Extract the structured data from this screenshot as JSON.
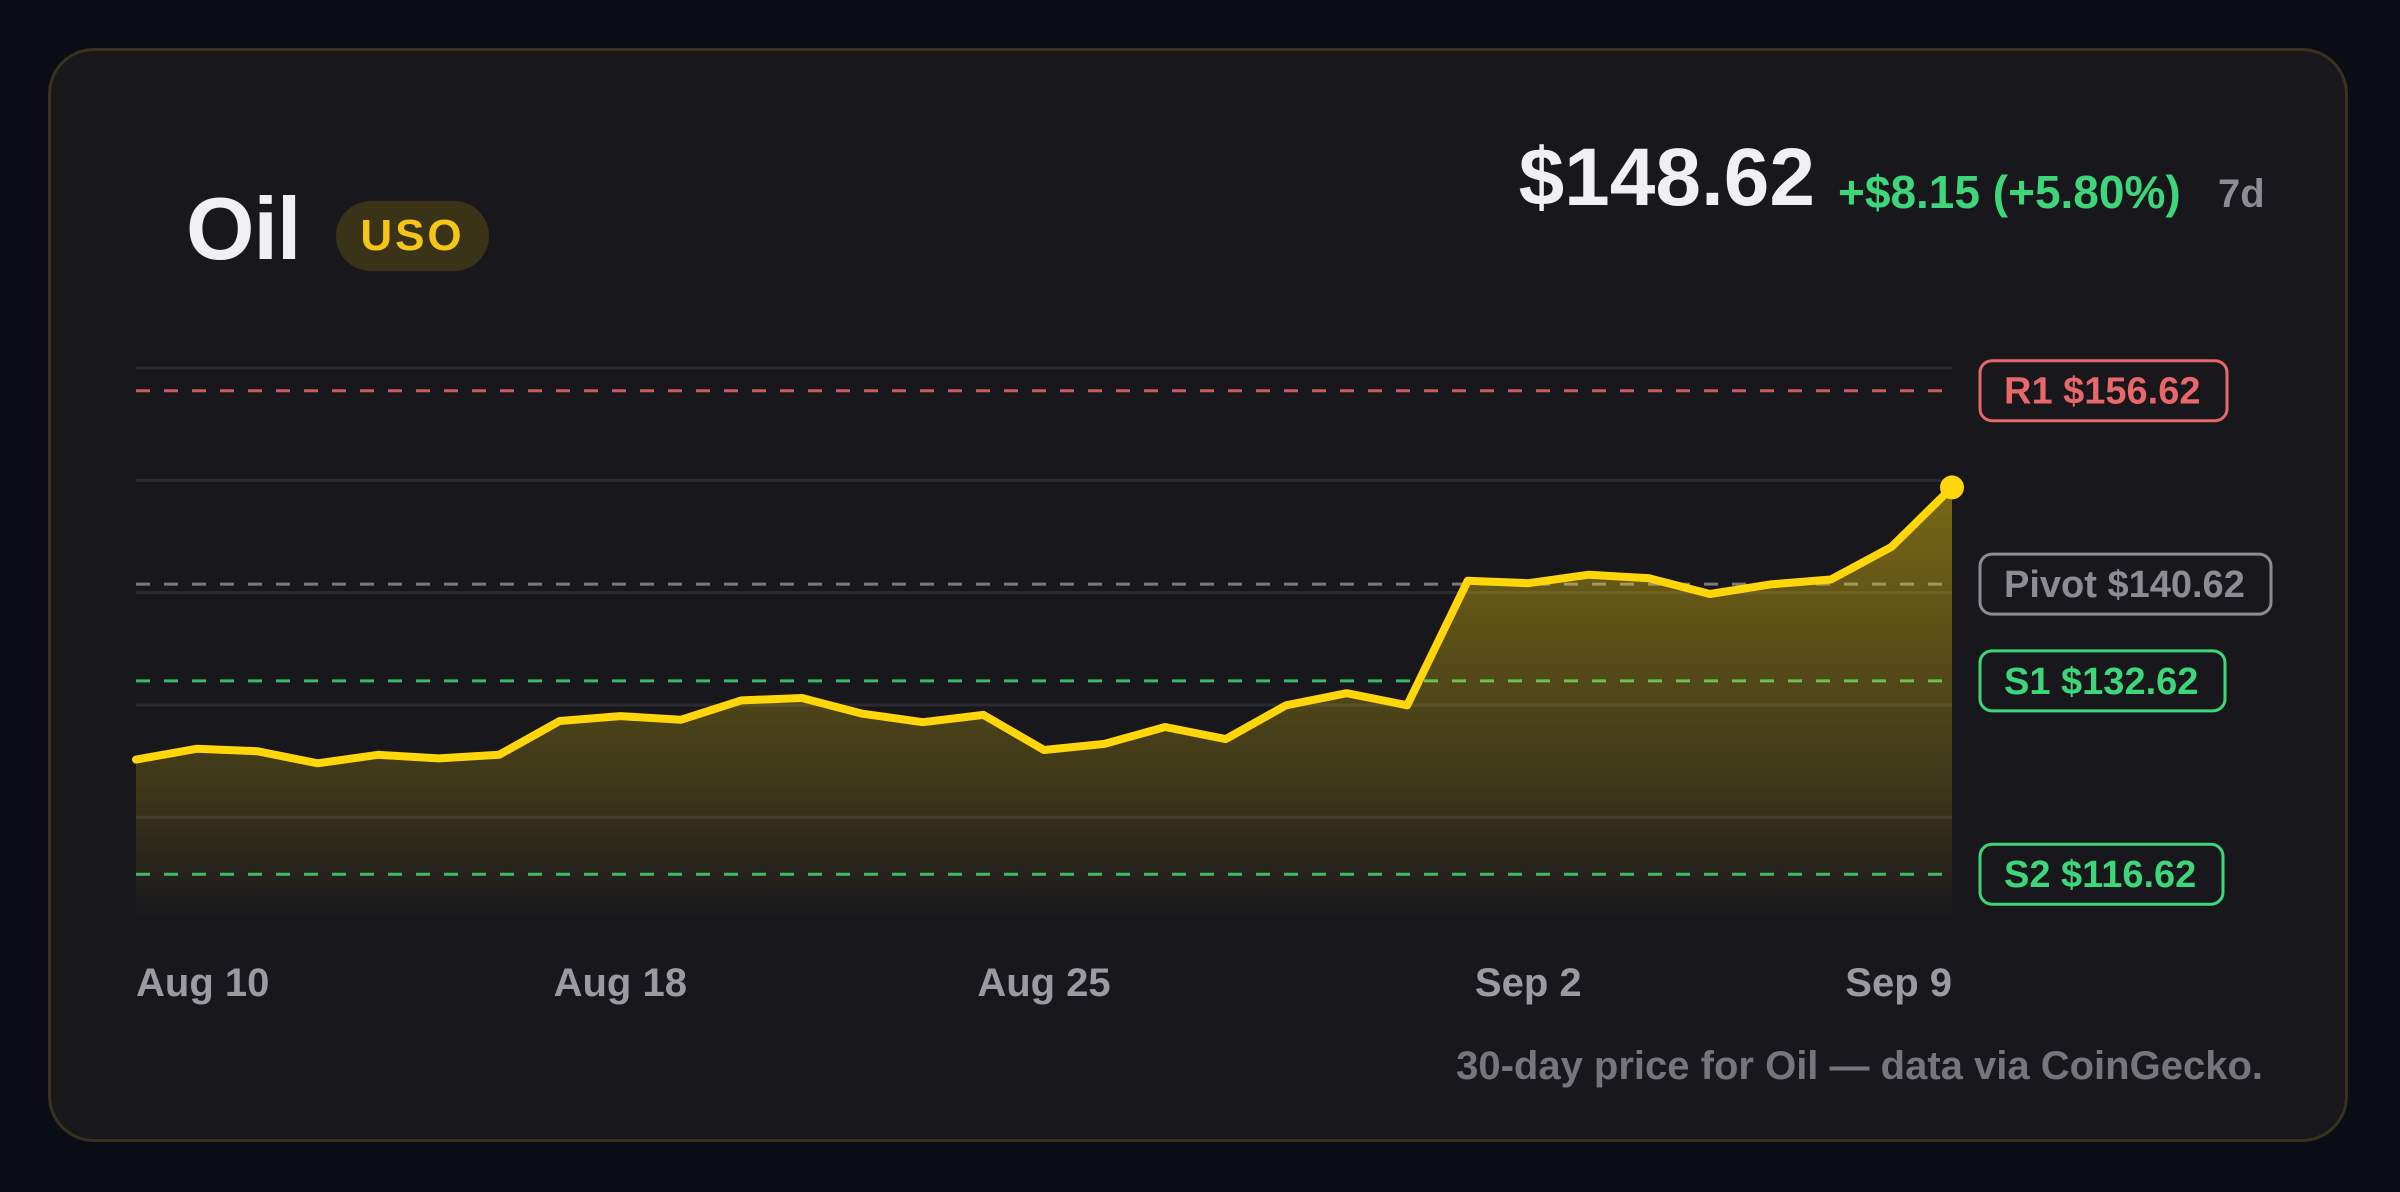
{
  "header": {
    "asset_name": "Oil",
    "ticker": "USO",
    "price": "$148.62",
    "change": "+$8.15 (+5.80%)",
    "period": "7d"
  },
  "footer": {
    "note": "30-day price for Oil — data via CoinGecko."
  },
  "colors": {
    "accent": "#ffd60a",
    "resistance": "#e8676b",
    "pivot": "#8c8c93",
    "support": "#3ed67a"
  },
  "chart_data": {
    "type": "area",
    "x": [
      "Aug 10",
      "Aug 11",
      "Aug 12",
      "Aug 13",
      "Aug 14",
      "Aug 15",
      "Aug 16",
      "Aug 17",
      "Aug 18",
      "Aug 19",
      "Aug 20",
      "Aug 21",
      "Aug 22",
      "Aug 23",
      "Aug 24",
      "Aug 25",
      "Aug 26",
      "Aug 27",
      "Aug 28",
      "Aug 29",
      "Aug 30",
      "Aug 31",
      "Sep 1",
      "Sep 2",
      "Sep 3",
      "Sep 4",
      "Sep 5",
      "Sep 6",
      "Sep 7",
      "Sep 8",
      "Sep 9"
    ],
    "values": [
      126.1,
      127.0,
      126.8,
      125.8,
      126.5,
      126.2,
      126.5,
      129.3,
      129.7,
      129.4,
      131.0,
      131.2,
      129.9,
      129.2,
      129.8,
      126.9,
      127.4,
      128.8,
      127.8,
      130.6,
      131.6,
      130.6,
      140.9,
      140.7,
      141.4,
      141.1,
      139.8,
      140.6,
      141.0,
      143.7,
      148.62
    ],
    "x_tick_labels": [
      "Aug 10",
      "Aug 18",
      "Aug 25",
      "Sep 2",
      "Sep 9"
    ],
    "ylim": [
      113,
      158.5
    ],
    "grid": true,
    "levels": [
      {
        "key": "r1",
        "label": "R1 $156.62",
        "value": 156.62,
        "kind": "resistance"
      },
      {
        "key": "pivot",
        "label": "Pivot $140.62",
        "value": 140.62,
        "kind": "pivot"
      },
      {
        "key": "s1",
        "label": "S1 $132.62",
        "value": 132.62,
        "kind": "support"
      },
      {
        "key": "s2",
        "label": "S2 $116.62",
        "value": 116.62,
        "kind": "support"
      }
    ]
  }
}
